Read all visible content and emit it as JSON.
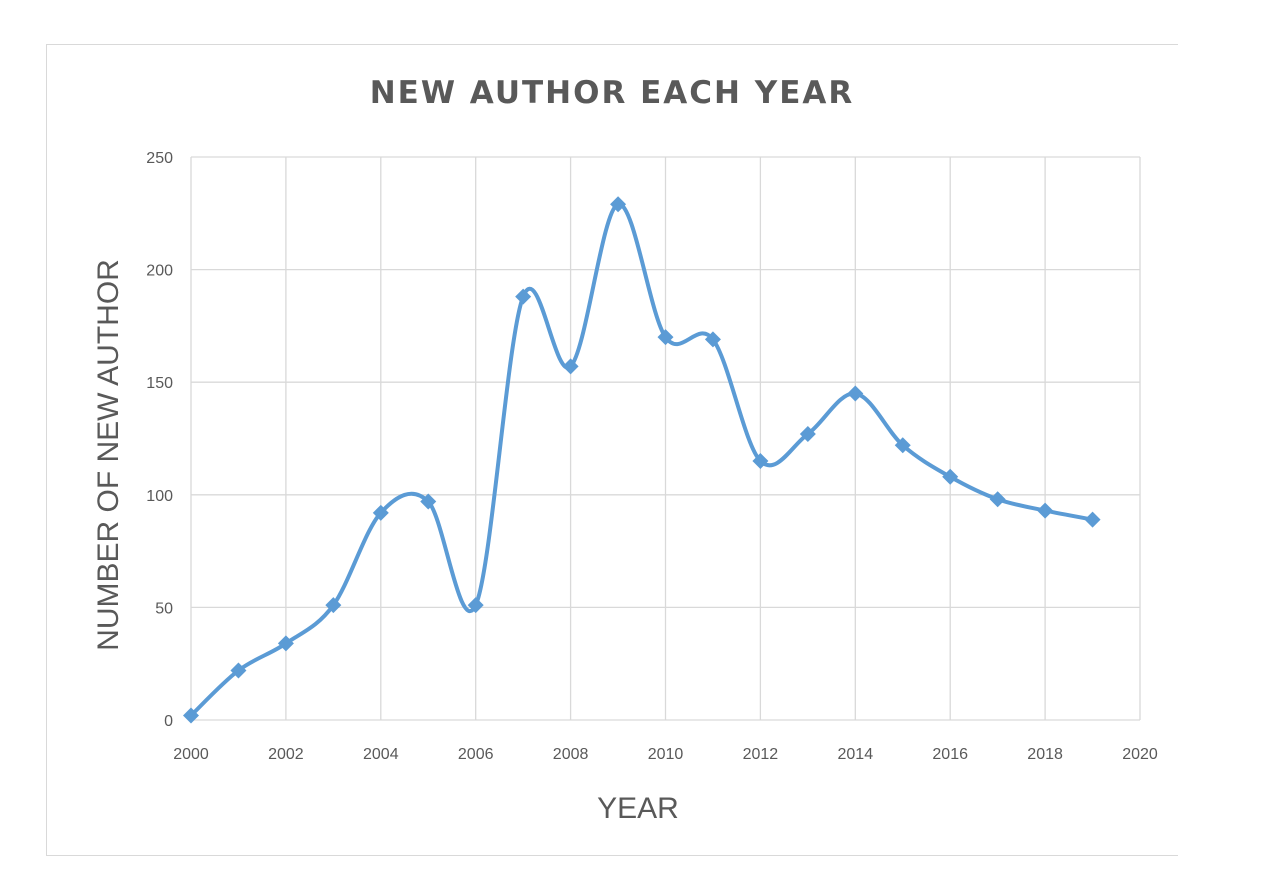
{
  "chart_data": {
    "type": "line",
    "title": "NEW AUTHOR EACH YEAR",
    "xlabel": "YEAR",
    "ylabel": "NUMBER OF NEW AUTHOR",
    "xlim": [
      2000,
      2020
    ],
    "ylim": [
      0,
      250
    ],
    "x_ticks": [
      2000,
      2002,
      2004,
      2006,
      2008,
      2010,
      2012,
      2014,
      2016,
      2018,
      2020
    ],
    "y_ticks": [
      0,
      50,
      100,
      150,
      200,
      250
    ],
    "grid": true,
    "smooth": true,
    "marker": "diamond",
    "color": "#5b9bd5",
    "series": [
      {
        "x": [
          2000,
          2001,
          2002,
          2003,
          2004,
          2005,
          2006,
          2007,
          2008,
          2009,
          2010,
          2011,
          2012,
          2013,
          2014,
          2015,
          2016,
          2017,
          2018,
          2019
        ],
        "values": [
          2,
          22,
          34,
          51,
          92,
          97,
          51,
          188,
          157,
          229,
          170,
          169,
          115,
          127,
          145,
          122,
          108,
          98,
          93,
          89
        ]
      }
    ]
  }
}
